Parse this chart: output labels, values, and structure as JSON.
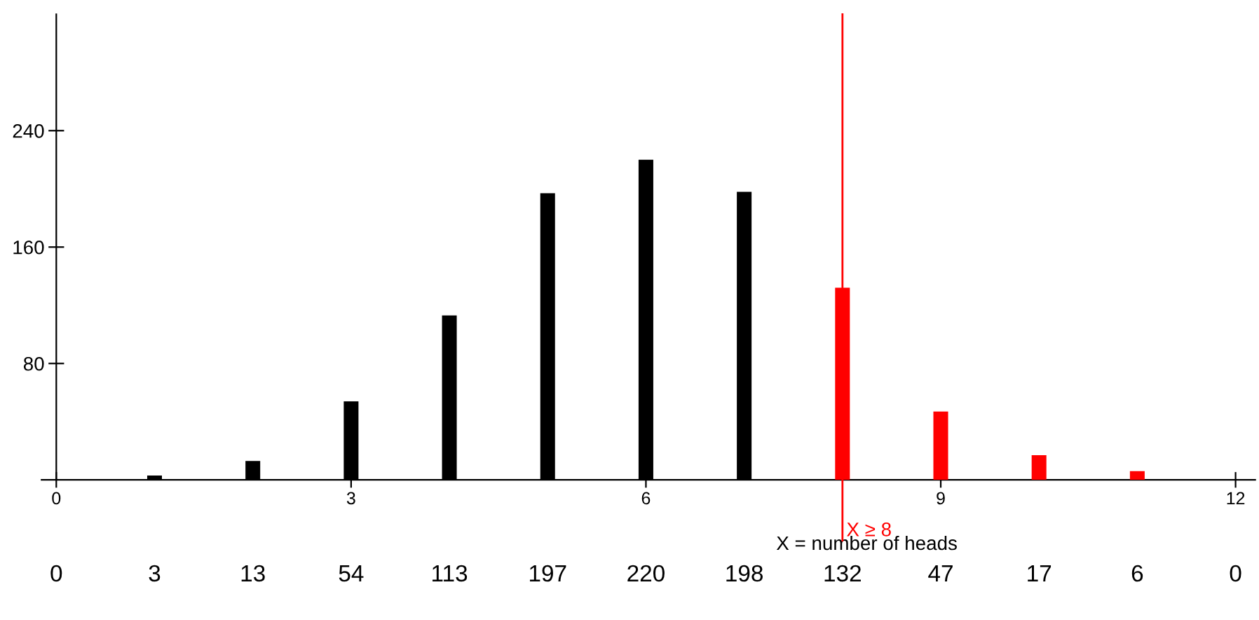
{
  "chart_data": {
    "type": "bar",
    "xlabel": "X = number of heads",
    "x": [
      0,
      1,
      2,
      3,
      4,
      5,
      6,
      7,
      8,
      9,
      10,
      11,
      12
    ],
    "values": [
      0,
      3,
      13,
      54,
      113,
      197,
      220,
      198,
      132,
      47,
      17,
      6,
      0
    ],
    "colors": [
      "#000000",
      "#000000",
      "#000000",
      "#000000",
      "#000000",
      "#000000",
      "#000000",
      "#000000",
      "#ff0000",
      "#ff0000",
      "#ff0000",
      "#ff0000",
      "#ff0000"
    ],
    "xlim": [
      -0.15,
      12.2
    ],
    "xticks": [
      0,
      3,
      6,
      9,
      12
    ],
    "ylim": [
      0,
      320
    ],
    "yticks": [
      80,
      160,
      240
    ],
    "ref_lines": [
      {
        "axis": "x",
        "value": 8,
        "label": "X ≥ 8",
        "color": "#ff0000"
      }
    ],
    "annotations": [
      "0",
      "3",
      "13",
      "54",
      "113",
      "197",
      "220",
      "198",
      "132",
      "47",
      "17",
      "6",
      "0"
    ],
    "grid": false,
    "legend": false
  }
}
